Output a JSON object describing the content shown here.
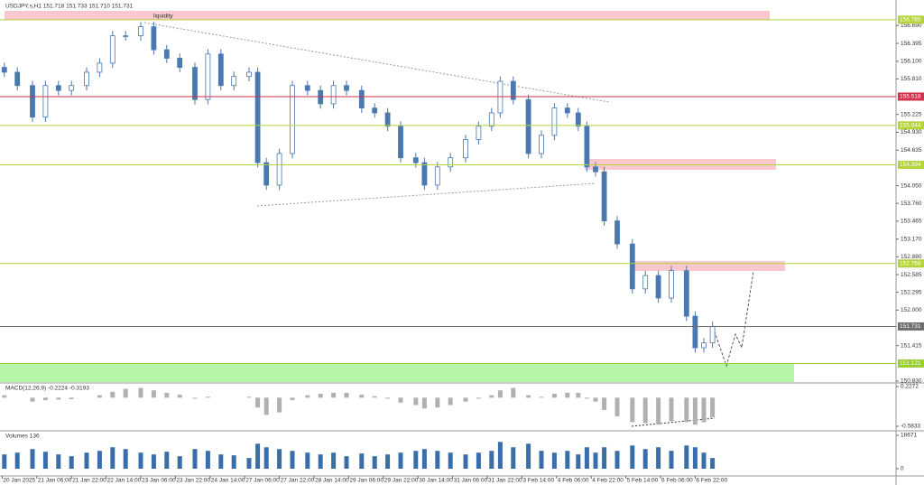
{
  "chart_data": [
    {
      "type": "candlestick",
      "title": "USDJPY.s,H1  151.718 151.733 151.710 151.731",
      "annotation": "liquidity",
      "x": [
        2,
        8,
        15,
        21,
        27,
        33,
        40,
        46,
        52,
        58,
        65,
        71,
        77,
        83,
        90,
        96,
        102,
        108,
        115,
        119,
        123,
        129,
        135,
        142,
        148,
        154,
        160,
        167,
        173,
        179,
        185,
        192,
        196,
        202,
        208,
        215,
        221,
        227,
        231,
        237,
        244,
        250,
        256,
        262,
        267,
        271,
        275,
        279,
        285,
        292,
        298,
        304,
        310,
        317,
        321,
        325,
        329
      ],
      "open": [
        156.0,
        155.92,
        155.7,
        155.18,
        155.7,
        155.62,
        155.7,
        155.92,
        156.07,
        156.52,
        156.52,
        156.67,
        156.29,
        156.15,
        156.0,
        155.47,
        156.22,
        155.7,
        155.85,
        155.92,
        154.43,
        154.06,
        154.58,
        155.7,
        155.62,
        155.4,
        155.7,
        155.62,
        155.33,
        155.25,
        155.03,
        154.51,
        154.43,
        154.06,
        154.36,
        154.51,
        154.81,
        155.03,
        155.25,
        155.77,
        155.47,
        154.58,
        154.88,
        155.33,
        155.25,
        155.03,
        154.36,
        154.28,
        153.47,
        153.09,
        152.35,
        152.57,
        152.2,
        152.65,
        151.9,
        151.38,
        151.46
      ],
      "high": [
        156.08,
        156.0,
        155.78,
        155.78,
        155.78,
        155.78,
        156.0,
        156.15,
        156.6,
        156.6,
        156.75,
        156.75,
        156.37,
        156.23,
        156.08,
        156.3,
        156.3,
        155.93,
        156.0,
        156.0,
        154.51,
        154.66,
        155.78,
        155.78,
        155.7,
        155.78,
        155.78,
        155.7,
        155.41,
        155.33,
        155.11,
        154.59,
        154.51,
        154.44,
        154.59,
        154.89,
        155.11,
        155.33,
        155.85,
        155.85,
        155.55,
        154.96,
        155.41,
        155.41,
        155.33,
        155.11,
        154.44,
        154.36,
        153.55,
        153.17,
        152.65,
        152.65,
        152.73,
        152.73,
        151.98,
        151.54,
        151.81
      ],
      "low": [
        155.84,
        155.62,
        155.1,
        155.1,
        155.54,
        155.54,
        155.62,
        155.84,
        155.99,
        156.44,
        156.44,
        156.21,
        156.07,
        155.92,
        155.39,
        155.39,
        155.62,
        155.62,
        155.77,
        154.35,
        153.98,
        153.98,
        154.5,
        155.54,
        155.32,
        155.32,
        155.54,
        155.25,
        155.17,
        154.95,
        154.43,
        154.35,
        153.98,
        153.98,
        154.28,
        154.43,
        154.73,
        154.95,
        155.17,
        155.39,
        154.5,
        154.5,
        154.8,
        155.17,
        154.95,
        154.28,
        154.2,
        153.39,
        153.01,
        152.27,
        152.27,
        152.12,
        152.12,
        151.82,
        151.3,
        151.3,
        151.38
      ],
      "close": [
        155.92,
        155.7,
        155.18,
        155.7,
        155.62,
        155.7,
        155.92,
        156.07,
        156.52,
        156.52,
        156.67,
        156.29,
        156.15,
        156.0,
        155.47,
        156.22,
        155.7,
        155.85,
        155.92,
        154.43,
        154.06,
        154.58,
        155.7,
        155.62,
        155.4,
        155.7,
        155.62,
        155.33,
        155.25,
        155.03,
        154.51,
        154.43,
        154.06,
        154.36,
        154.51,
        154.81,
        155.03,
        155.25,
        155.77,
        155.47,
        154.58,
        154.88,
        155.33,
        155.25,
        155.03,
        154.36,
        154.28,
        153.47,
        153.09,
        152.35,
        152.57,
        152.2,
        152.65,
        151.9,
        151.38,
        151.46,
        151.73
      ],
      "color": "#4a78b0",
      "xlim": [
        0,
        413.75
      ],
      "ylim": [
        150.815,
        157.11
      ],
      "yticks": [
        {
          "value": 156.69,
          "label": "156.690"
        },
        156.395,
        {
          "value": 156.1,
          "label": "156.100"
        },
        {
          "value": 155.81,
          "label": "155.810"
        },
        155.225,
        {
          "value": 154.93,
          "label": "154.930"
        },
        154.635,
        {
          "value": 154.05,
          "label": "154.050"
        },
        {
          "value": 153.76,
          "label": "153.760"
        },
        153.465,
        {
          "value": 153.17,
          "label": "153.170"
        },
        {
          "value": 152.88,
          "label": "152.880"
        },
        152.585,
        152.295,
        {
          "value": 152.0,
          "label": "152.000"
        },
        151.415,
        {
          "value": 150.83,
          "label": "150.830"
        }
      ],
      "xticks": [
        {
          "value": 1,
          "label": "20 Jan 2025"
        },
        {
          "value": 17,
          "label": "21 Jan 06:00"
        },
        {
          "value": 33,
          "label": "21 Jan 22:00"
        },
        {
          "value": 49,
          "label": "22 Jan 14:00"
        },
        {
          "value": 65,
          "label": "23 Jan 06:00"
        },
        {
          "value": 81,
          "label": "23 Jan 22:00"
        },
        {
          "value": 97,
          "label": "24 Jan 14:00"
        },
        {
          "value": 113,
          "label": "27 Jan 06:00"
        },
        {
          "value": 129,
          "label": "27 Jan 22:00"
        },
        {
          "value": 145,
          "label": "28 Jan 14:00"
        },
        {
          "value": 161,
          "label": "29 Jan 06:00"
        },
        {
          "value": 177,
          "label": "29 Jan 22:00"
        },
        {
          "value": 193,
          "label": "30 Jan 14:00"
        },
        {
          "value": 209,
          "label": "31 Jan 06:00"
        },
        {
          "value": 225,
          "label": "31 Jan 22:00"
        },
        {
          "value": 241,
          "label": "3 Feb 14:00"
        },
        {
          "value": 257,
          "label": "4 Feb 06:00"
        },
        {
          "value": 273,
          "label": "4 Feb 22:00"
        },
        {
          "value": 289,
          "label": "5 Feb 14:00"
        },
        {
          "value": 305,
          "label": "6 Feb 06:00"
        },
        {
          "value": 321,
          "label": "6 Feb 22:00"
        }
      ],
      "levels": [
        {
          "value": 156.785,
          "color": "#b5d33c"
        },
        {
          "value": 155.518,
          "color": "#d0324a"
        },
        {
          "value": 155.044,
          "color": "#b5d33c"
        },
        {
          "value": 154.394,
          "color": "#b5d33c"
        },
        {
          "value": 152.768,
          "color": "#b5d33c"
        },
        {
          "value": 151.731,
          "color": "#6e6e6e"
        },
        {
          "value": 151.121,
          "color": "#9acd32"
        }
      ]
    },
    {
      "type": "bar",
      "title": "MACD(12,26,9) -0.2224 -0.3193",
      "color": "#b0b0b0",
      "x": [
        2,
        8,
        15,
        21,
        27,
        33,
        40,
        46,
        52,
        58,
        65,
        71,
        77,
        83,
        90,
        96,
        102,
        108,
        115,
        119,
        123,
        129,
        135,
        142,
        148,
        154,
        160,
        167,
        173,
        179,
        185,
        192,
        196,
        202,
        208,
        215,
        221,
        227,
        231,
        237,
        244,
        250,
        256,
        262,
        267,
        271,
        275,
        279,
        285,
        292,
        298,
        304,
        310,
        317,
        321,
        325,
        329
      ],
      "values": [
        0.05,
        0.0,
        -0.08,
        -0.05,
        -0.04,
        -0.03,
        0.0,
        0.05,
        0.12,
        0.18,
        0.2,
        0.15,
        0.1,
        0.06,
        -0.02,
        0.02,
        0.0,
        0.0,
        0.02,
        -0.2,
        -0.35,
        -0.3,
        -0.05,
        0.05,
        0.08,
        0.1,
        0.1,
        0.06,
        0.03,
        -0.02,
        -0.1,
        -0.15,
        -0.22,
        -0.2,
        -0.15,
        -0.08,
        -0.02,
        0.05,
        0.15,
        0.2,
        0.05,
        0.02,
        0.08,
        0.1,
        0.1,
        -0.02,
        -0.08,
        -0.25,
        -0.38,
        -0.5,
        -0.52,
        -0.55,
        -0.48,
        -0.5,
        -0.55,
        -0.5,
        -0.4
      ],
      "xlim": [
        0,
        413.75
      ],
      "ylim": [
        -0.657,
        0.301
      ],
      "yticks": [
        0.2272,
        -0.5833
      ]
    },
    {
      "type": "bar",
      "title": "Volumes 136",
      "color": "#3a6ea8",
      "x": [
        2,
        8,
        15,
        21,
        27,
        33,
        40,
        46,
        52,
        58,
        65,
        71,
        77,
        83,
        90,
        96,
        102,
        108,
        115,
        119,
        123,
        129,
        135,
        142,
        148,
        154,
        160,
        167,
        173,
        179,
        185,
        192,
        196,
        202,
        208,
        215,
        221,
        227,
        231,
        237,
        244,
        250,
        256,
        262,
        267,
        271,
        275,
        279,
        285,
        292,
        298,
        304,
        310,
        317,
        321,
        325,
        329
      ],
      "values": [
        8000,
        9000,
        11000,
        9500,
        8000,
        7000,
        9000,
        10000,
        12000,
        11000,
        9000,
        8000,
        9500,
        7000,
        11000,
        10000,
        8000,
        7500,
        6000,
        14000,
        12000,
        11000,
        10000,
        9000,
        8000,
        9000,
        7000,
        8500,
        7000,
        8000,
        9000,
        10000,
        11000,
        10000,
        9000,
        8000,
        9000,
        10000,
        15000,
        12000,
        14000,
        10000,
        9000,
        10000,
        8000,
        12000,
        9000,
        12000,
        10000,
        13000,
        11000,
        12000,
        10000,
        13000,
        12000,
        9000,
        6000
      ],
      "xlim": [
        0,
        413.75
      ],
      "ylim": [
        -3028,
        20689
      ],
      "yticks": [
        18671,
        0
      ]
    }
  ]
}
